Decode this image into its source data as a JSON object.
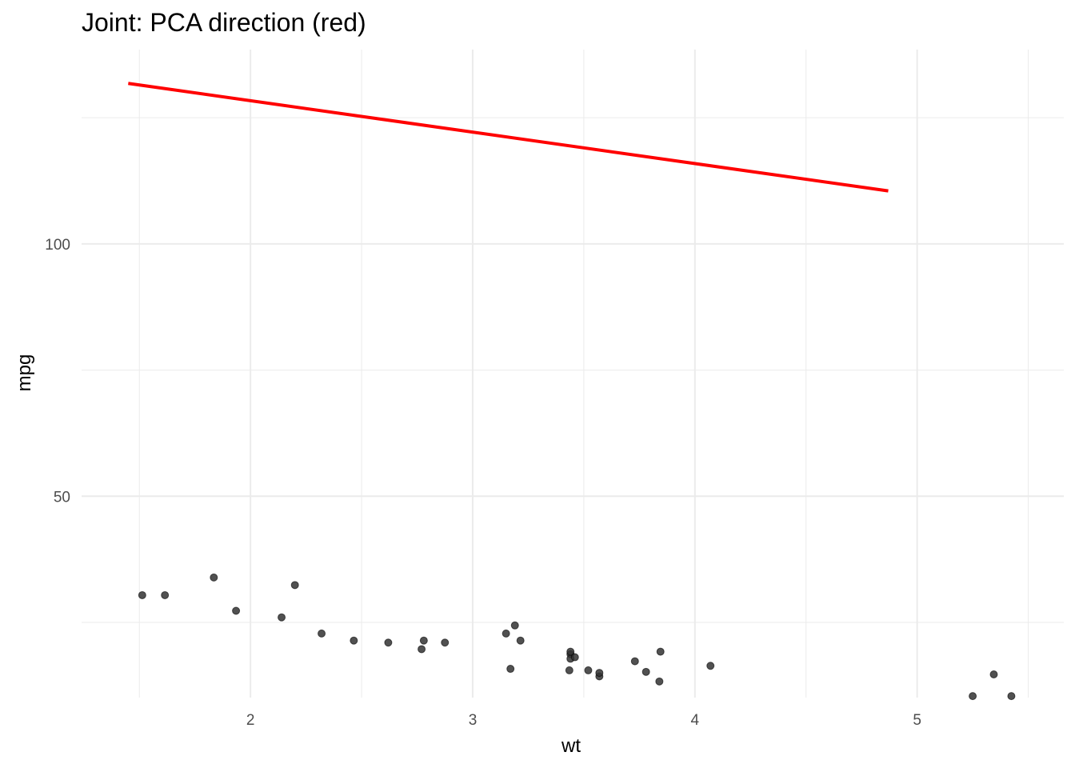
{
  "chart_data": {
    "type": "scatter",
    "title": "Joint: PCA direction (red)",
    "xlabel": "wt",
    "ylabel": "mpg",
    "xlim": [
      1.24,
      5.66
    ],
    "ylim": [
      10.1,
      138.5
    ],
    "x_ticks": [
      2,
      3,
      4,
      5
    ],
    "y_ticks": [
      50,
      100
    ],
    "grid": true,
    "legend": "none",
    "colors": {
      "points": "#333333",
      "line": "#ff0000",
      "grid": "#ebebeb"
    },
    "points": [
      {
        "x": 1.513,
        "y": 30.4
      },
      {
        "x": 1.615,
        "y": 30.4
      },
      {
        "x": 1.835,
        "y": 33.9
      },
      {
        "x": 1.935,
        "y": 27.3
      },
      {
        "x": 2.14,
        "y": 26.0
      },
      {
        "x": 2.2,
        "y": 32.4
      },
      {
        "x": 2.32,
        "y": 22.8
      },
      {
        "x": 2.465,
        "y": 21.4
      },
      {
        "x": 2.62,
        "y": 21.0
      },
      {
        "x": 2.77,
        "y": 19.7
      },
      {
        "x": 2.78,
        "y": 21.4
      },
      {
        "x": 2.875,
        "y": 21.0
      },
      {
        "x": 3.15,
        "y": 22.8
      },
      {
        "x": 3.17,
        "y": 15.8
      },
      {
        "x": 3.19,
        "y": 24.4
      },
      {
        "x": 3.215,
        "y": 21.4
      },
      {
        "x": 3.435,
        "y": 15.5
      },
      {
        "x": 3.44,
        "y": 18.7
      },
      {
        "x": 3.44,
        "y": 17.8
      },
      {
        "x": 3.44,
        "y": 19.2
      },
      {
        "x": 3.46,
        "y": 18.1
      },
      {
        "x": 3.52,
        "y": 15.5
      },
      {
        "x": 3.57,
        "y": 14.3
      },
      {
        "x": 3.57,
        "y": 15.0
      },
      {
        "x": 3.73,
        "y": 17.3
      },
      {
        "x": 3.78,
        "y": 15.2
      },
      {
        "x": 3.84,
        "y": 13.3
      },
      {
        "x": 3.845,
        "y": 19.2
      },
      {
        "x": 4.07,
        "y": 16.4
      },
      {
        "x": 5.25,
        "y": 10.4
      },
      {
        "x": 5.345,
        "y": 14.7
      },
      {
        "x": 5.424,
        "y": 10.4
      }
    ],
    "line": {
      "x": [
        1.45,
        4.87
      ],
      "y": [
        131.8,
        110.5
      ]
    }
  }
}
